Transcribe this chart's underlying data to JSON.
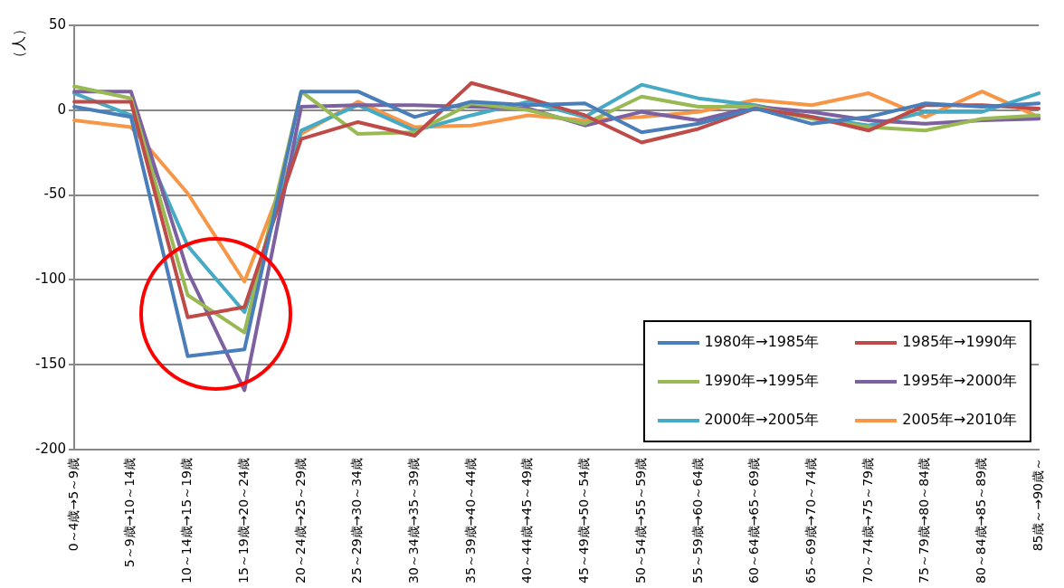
{
  "chart_data": {
    "type": "line",
    "ylabel": "（人）",
    "categories": [
      "0～4歳→5～9歳",
      "5～9歳→10～14歳",
      "10～14歳→15～19歳",
      "15～19歳→20～24歳",
      "20～24歳→25～29歳",
      "25～29歳→30～34歳",
      "30～34歳→35～39歳",
      "35～39歳→40～44歳",
      "40～44歳→45～49歳",
      "45～49歳→50～54歳",
      "50～54歳→55～59歳",
      "55～59歳→60～64歳",
      "60～64歳→65～69歳",
      "65～69歳→70～74歳",
      "70～74歳→75～79歳",
      "75～79歳→80～84歳",
      "80～84歳→85～89歳",
      "85歳～→90歳～"
    ],
    "series": [
      {
        "name": "1980年→1985年",
        "color": "#4a7ebb",
        "values": [
          2,
          -4,
          -145,
          -141,
          11,
          11,
          -4,
          5,
          3,
          4,
          -13,
          -8,
          1,
          -8,
          -4,
          4,
          2,
          4
        ]
      },
      {
        "name": "1985年→1990年",
        "color": "#be4b48",
        "values": [
          5,
          5,
          -122,
          -116,
          -17,
          -7,
          -15,
          16,
          7,
          -3,
          -19,
          -11,
          1,
          -4,
          -12,
          3,
          3,
          1
        ]
      },
      {
        "name": "1990年→1995年",
        "color": "#98b954",
        "values": [
          14,
          7,
          -109,
          -131,
          11,
          -14,
          -13,
          4,
          0,
          -8,
          8,
          2,
          2,
          -5,
          -10,
          -12,
          -5,
          -3
        ]
      },
      {
        "name": "1995年→2000年",
        "color": "#7d60a0",
        "values": [
          11,
          11,
          -95,
          -165,
          2,
          3,
          3,
          2,
          1,
          -9,
          -1,
          -6,
          2,
          -1,
          -6,
          -8,
          -6,
          -5
        ]
      },
      {
        "name": "2000年→2005年",
        "color": "#46aac5",
        "values": [
          10,
          -3,
          -80,
          -119,
          -12,
          3,
          -12,
          -3,
          5,
          -4,
          15,
          7,
          3,
          -4,
          -9,
          -1,
          -1,
          10
        ]
      },
      {
        "name": "2005年→2010年",
        "color": "#f79646",
        "values": [
          -6,
          -10,
          -49,
          -101,
          -14,
          5,
          -10,
          -9,
          -3,
          -6,
          -4,
          -1,
          6,
          3,
          10,
          -4,
          11,
          -4
        ]
      }
    ],
    "ylim": [
      -200,
      50
    ],
    "yticks": [
      -200,
      -150,
      -100,
      -50,
      0,
      50
    ],
    "grid": "y",
    "legend": "bottom right",
    "marker": "none",
    "line_style": "solid"
  }
}
